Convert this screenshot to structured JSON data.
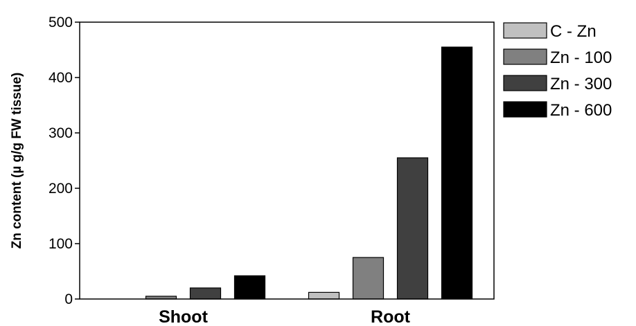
{
  "chart_data": {
    "type": "bar",
    "title": "",
    "xlabel": "",
    "ylabel": "Zn content (µ g/g FW tissue)",
    "ylim": [
      0,
      500
    ],
    "yticks": [
      0,
      100,
      200,
      300,
      400,
      500
    ],
    "grid": false,
    "legend_position": "right",
    "categories": [
      "Shoot",
      "Root"
    ],
    "series": [
      {
        "name": "C - Zn",
        "color": "#c0c0c0",
        "values": [
          0,
          12
        ]
      },
      {
        "name": "Zn - 100",
        "color": "#808080",
        "values": [
          5,
          75
        ]
      },
      {
        "name": "Zn - 300",
        "color": "#404040",
        "values": [
          20,
          255
        ]
      },
      {
        "name": "Zn - 600",
        "color": "#000000",
        "values": [
          42,
          455
        ]
      }
    ]
  }
}
